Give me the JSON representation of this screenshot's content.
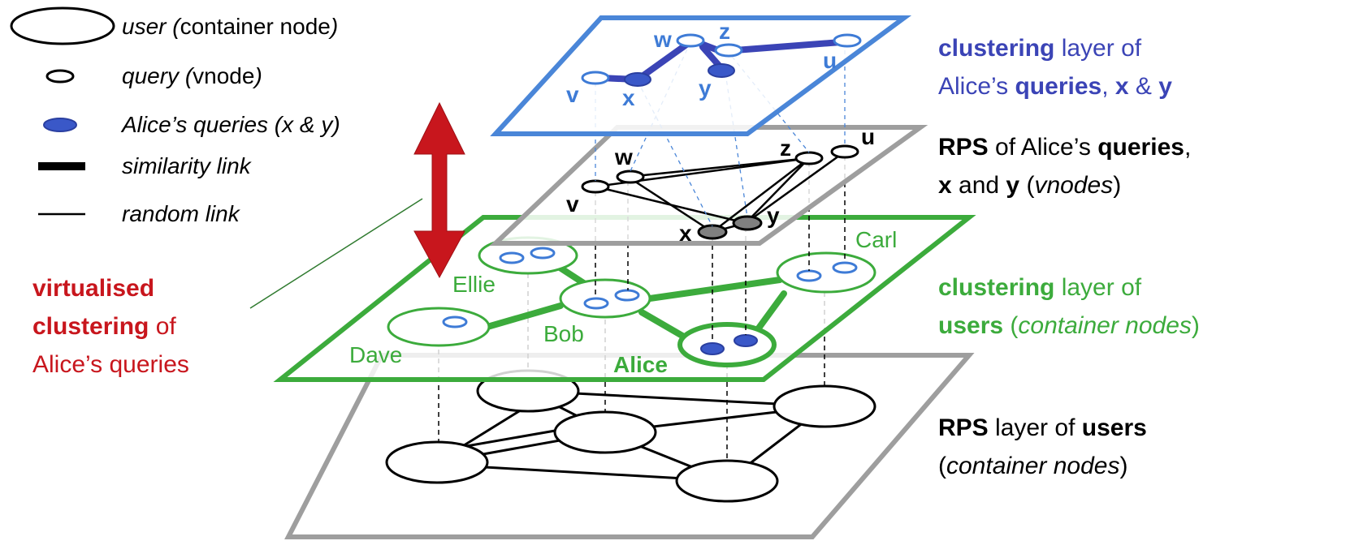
{
  "colors": {
    "blue_layer": "#4a86d8",
    "blue_text": "#3e7bd6",
    "purple_text": "#3b44b6",
    "green": "#3cab3c",
    "grey": "#9e9e9e",
    "red": "#c8161d",
    "query_fill": "#3a58c8"
  },
  "legend": {
    "user": {
      "italic": "user (",
      "plain": "container node",
      "end": ")"
    },
    "query": {
      "italic": "query (",
      "plain": "vnode",
      "end": ")"
    },
    "alice_queries": "Alice’s queries (x & y)",
    "similarity": "similarity link",
    "random": "random link"
  },
  "left_caption": {
    "line1": "virtualised",
    "line2_bold": "clustering",
    "line2_rest": " of",
    "line3": "Alice’s queries"
  },
  "right_captions": {
    "c1": {
      "l1_bold": "clustering",
      "l1_rest": " layer of",
      "l2_a": "Alice’s ",
      "l2_b": "queries",
      "l2_c": ", ",
      "l2_d": "x",
      "l2_e": " & ",
      "l2_f": "y"
    },
    "c2": {
      "l1_bold": "RPS",
      "l1_rest": " of Alice’s ",
      "l1_bold2": "queries",
      "l1_end": ",",
      "l2_a": "x",
      "l2_b": " and ",
      "l2_c": "y",
      "l2_d": " (",
      "l2_e": "vnodes",
      "l2_f": ")"
    },
    "c3": {
      "l1_bold": "clustering",
      "l1_rest": " layer of",
      "l2_bold": "users",
      "l2_rest": " (",
      "l2_ital": "container nodes",
      "l2_end": ")"
    },
    "c4": {
      "l1_bold": "RPS",
      "l1_rest": " layer of ",
      "l1_bold2": "users",
      "l2_a": "(",
      "l2_ital": "container nodes",
      "l2_end": ")"
    }
  },
  "users": {
    "ellie": "Ellie",
    "bob": "Bob",
    "dave": "Dave",
    "carl": "Carl",
    "alice": "Alice"
  },
  "vnodes": {
    "v": "v",
    "w": "w",
    "x": "x",
    "y": "y",
    "z": "z",
    "u": "u"
  }
}
